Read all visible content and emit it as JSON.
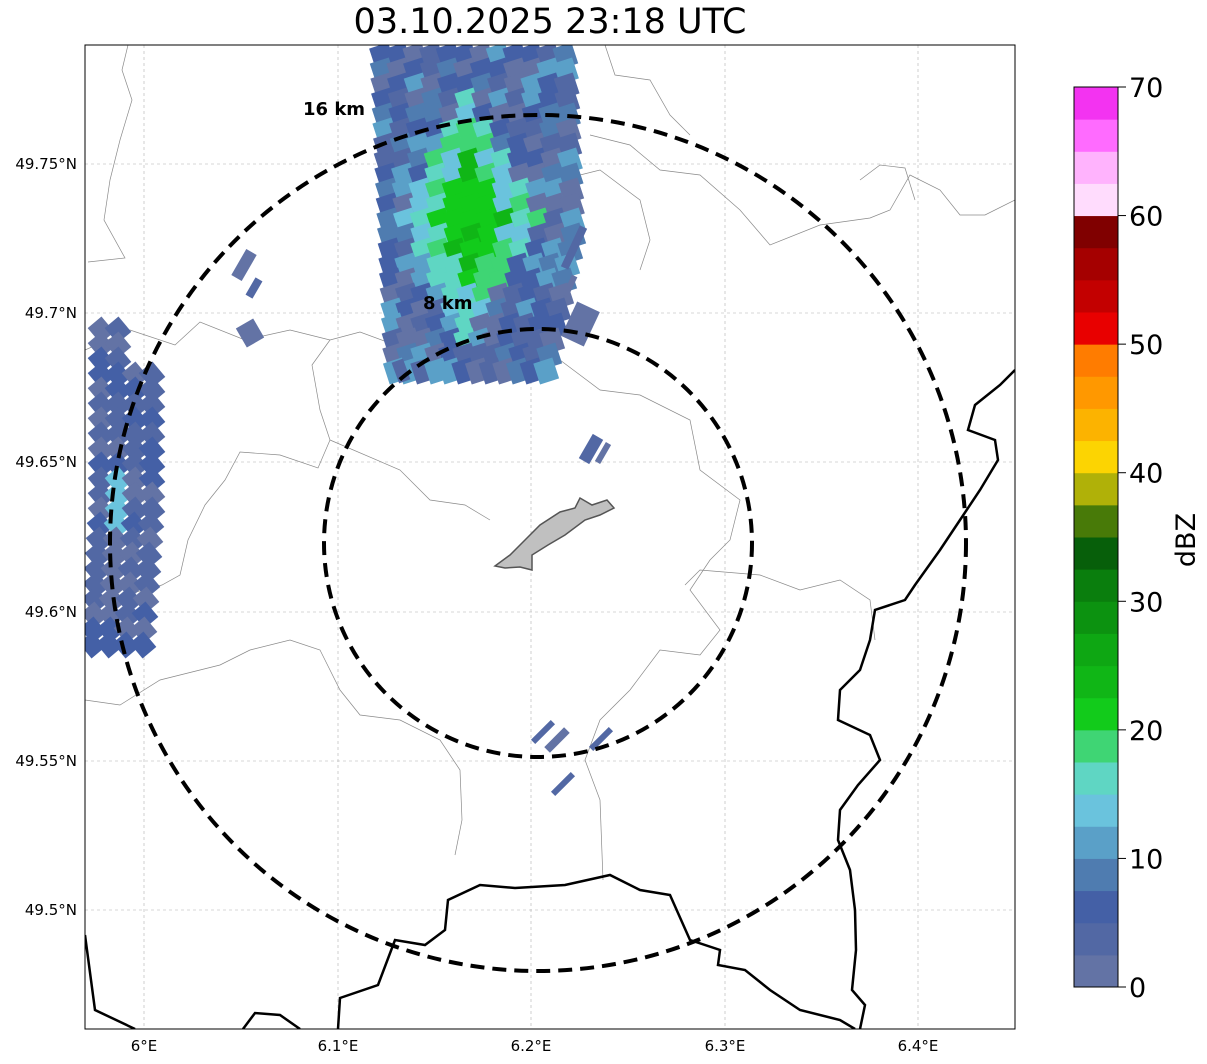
{
  "title": "03.10.2025 23:18 UTC",
  "map": {
    "lat_ticks": [
      "49.75°N",
      "49.7°N",
      "49.65°N",
      "49.6°N",
      "49.55°N",
      "49.5°N"
    ],
    "lon_ticks": [
      "6°E",
      "6.1°E",
      "6.2°E",
      "6.3°E",
      "6.4°E"
    ],
    "range_rings": [
      {
        "label": "16 km"
      },
      {
        "label": "8 km"
      }
    ],
    "grid": true
  },
  "colorbar": {
    "unit": "dBZ",
    "ticks": [
      "0",
      "10",
      "20",
      "30",
      "40",
      "50",
      "60",
      "70"
    ],
    "range": [
      0,
      70
    ],
    "step": 2.5,
    "colors": [
      "#6373a5",
      "#5268a4",
      "#4460a6",
      "#4f7cb0",
      "#5aa0c8",
      "#6ac3dd",
      "#5fd6c3",
      "#3fd574",
      "#12cb1b",
      "#10b616",
      "#0ea713",
      "#0c9210",
      "#0a7e0d",
      "#075f0a",
      "#487a08",
      "#b0b108",
      "#fcd402",
      "#fcb300",
      "#ff9800",
      "#ff7c00",
      "#e80000",
      "#c30000",
      "#a50000",
      "#800000",
      "#ffdcfd",
      "#ffb3fd",
      "#ff6bff",
      "#f333f1"
    ]
  }
}
